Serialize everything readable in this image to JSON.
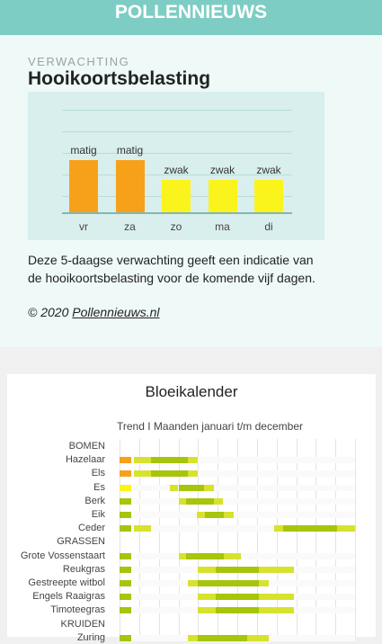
{
  "header": {
    "title": "POLLENNIEUWS"
  },
  "forecast": {
    "kicker": "VERWACHTING",
    "title": "Hooikoortsbelasting",
    "days": [
      {
        "day": "vr",
        "level": "matig",
        "color": "#f7a11a"
      },
      {
        "day": "za",
        "level": "matig",
        "color": "#f7a11a"
      },
      {
        "day": "zo",
        "level": "zwak",
        "color": "#fbf41c"
      },
      {
        "day": "ma",
        "level": "zwak",
        "color": "#fbf41c"
      },
      {
        "day": "di",
        "level": "zwak",
        "color": "#fbf41c"
      }
    ],
    "description": "Deze 5-daagse verwachting geeft een indicatie van de hooikoortsbelasting voor de komende vijf dagen.",
    "copyright_prefix": "© 2020 ",
    "copyright_link": "Pollennieuws.nl"
  },
  "calendar": {
    "title": "Bloeikalender",
    "subtitle": "Trend I Maanden januari t/m december",
    "colors": {
      "orange": "#f7a11a",
      "yellow": "#fbf41c",
      "green": "#a6c50c",
      "light": "#d7e22e"
    },
    "rows": [
      {
        "label": "BOMEN",
        "category": true
      },
      {
        "label": "Hazelaar",
        "segments": [
          [
            0,
            0.6,
            "orange"
          ],
          [
            0.75,
            1.6,
            "light"
          ],
          [
            1.6,
            3.5,
            "green"
          ],
          [
            3.5,
            4.0,
            "light"
          ]
        ]
      },
      {
        "label": "Els",
        "segments": [
          [
            0,
            0.6,
            "orange"
          ],
          [
            0.75,
            1.6,
            "light"
          ],
          [
            1.6,
            3.5,
            "green"
          ],
          [
            3.5,
            4.0,
            "light"
          ]
        ]
      },
      {
        "label": "Es",
        "segments": [
          [
            0,
            0.6,
            "yellow"
          ],
          [
            2.55,
            3.0,
            "light"
          ],
          [
            3.0,
            4.3,
            "green"
          ],
          [
            4.3,
            4.8,
            "light"
          ]
        ]
      },
      {
        "label": "Berk",
        "segments": [
          [
            0,
            0.6,
            "green"
          ],
          [
            3.0,
            3.4,
            "light"
          ],
          [
            3.4,
            4.8,
            "green"
          ],
          [
            4.8,
            5.25,
            "light"
          ]
        ]
      },
      {
        "label": "Eik",
        "segments": [
          [
            0,
            0.6,
            "green"
          ],
          [
            3.95,
            4.35,
            "light"
          ],
          [
            4.35,
            5.3,
            "green"
          ],
          [
            5.3,
            5.8,
            "light"
          ]
        ]
      },
      {
        "label": "Ceder",
        "segments": [
          [
            0,
            0.6,
            "green"
          ],
          [
            0.75,
            1.6,
            "light"
          ],
          [
            7.9,
            8.35,
            "light"
          ],
          [
            8.35,
            11.1,
            "green"
          ],
          [
            11.1,
            12,
            "light"
          ]
        ]
      },
      {
        "label": "GRASSEN",
        "category": true
      },
      {
        "label": "Grote Vossenstaart",
        "segments": [
          [
            0,
            0.6,
            "green"
          ],
          [
            3.0,
            3.4,
            "light"
          ],
          [
            3.4,
            5.3,
            "green"
          ],
          [
            5.3,
            6.2,
            "light"
          ]
        ]
      },
      {
        "label": "Reukgras",
        "segments": [
          [
            0,
            0.6,
            "green"
          ],
          [
            4.0,
            4.9,
            "light"
          ],
          [
            4.9,
            7.1,
            "green"
          ],
          [
            7.1,
            8.9,
            "light"
          ]
        ]
      },
      {
        "label": "Gestreepte witbol",
        "segments": [
          [
            0,
            0.6,
            "green"
          ],
          [
            3.5,
            4.0,
            "light"
          ],
          [
            4.0,
            7.1,
            "green"
          ],
          [
            7.1,
            7.6,
            "light"
          ]
        ]
      },
      {
        "label": "Engels Raaigras",
        "segments": [
          [
            0,
            0.6,
            "green"
          ],
          [
            4.0,
            4.9,
            "light"
          ],
          [
            4.9,
            7.1,
            "green"
          ],
          [
            7.1,
            8.9,
            "light"
          ]
        ]
      },
      {
        "label": "Timoteegras",
        "segments": [
          [
            0,
            0.6,
            "green"
          ],
          [
            4.0,
            4.9,
            "light"
          ],
          [
            4.9,
            7.1,
            "green"
          ],
          [
            7.1,
            8.9,
            "light"
          ]
        ]
      },
      {
        "label": "KRUIDEN",
        "category": true
      },
      {
        "label": "Zuring",
        "segments": [
          [
            0,
            0.6,
            "green"
          ],
          [
            3.5,
            4.0,
            "light"
          ],
          [
            4.0,
            6.5,
            "green"
          ],
          [
            6.5,
            7.6,
            "light"
          ]
        ]
      }
    ]
  }
}
